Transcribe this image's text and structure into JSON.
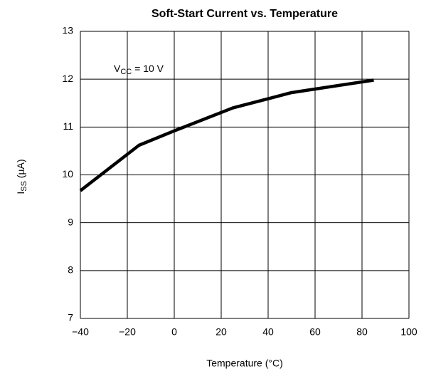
{
  "chart_data": {
    "type": "line",
    "title": "Soft-Start Current vs. Temperature",
    "xlabel": "Temperature (°C)",
    "ylabel": {
      "main": "I",
      "sub": "SS",
      "rest": " (µA)"
    },
    "annotation": {
      "main": "V",
      "sub": "CC",
      "rest": " = 10 V"
    },
    "x": [
      -40,
      -15,
      0,
      25,
      50,
      85
    ],
    "series": [
      {
        "name": "ISS",
        "color": "#000000",
        "values": [
          9.67,
          10.62,
          10.92,
          11.4,
          11.72,
          11.98
        ]
      }
    ],
    "xlim": [
      -40,
      100
    ],
    "xticks": [
      {
        "value": -40,
        "label": "−40"
      },
      {
        "value": -20,
        "label": "−20"
      },
      0,
      20,
      40,
      60,
      80,
      100
    ],
    "ylim": [
      7,
      13
    ],
    "yticks": [
      7,
      8,
      9,
      10,
      11,
      12,
      13
    ],
    "grid": true
  }
}
